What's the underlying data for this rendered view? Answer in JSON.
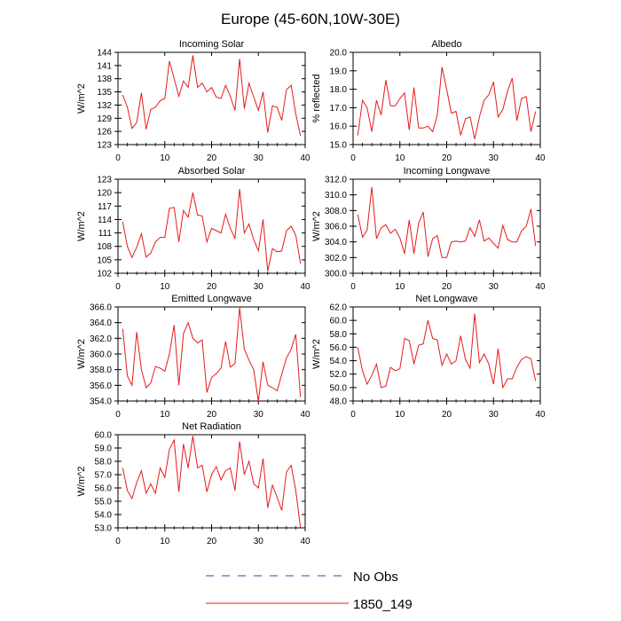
{
  "title": "Europe (45-60N,10W-30E)",
  "legend": {
    "entries": [
      {
        "label": "No Obs",
        "color": "#3a3a9e",
        "style": "dashed"
      },
      {
        "label": "1850_149",
        "color": "#e8191a",
        "style": "solid"
      }
    ]
  },
  "chart_data": [
    {
      "type": "line",
      "title": "Incoming Solar",
      "ylabel": "W/m^2",
      "xlabel": "",
      "xlim": [
        0,
        40
      ],
      "ylim": [
        123,
        144
      ],
      "xticks": [
        0,
        10,
        20,
        30,
        40
      ],
      "yticks": [
        123,
        126,
        129,
        132,
        135,
        138,
        141,
        144
      ],
      "ytick_labels": [
        "123",
        "126",
        "129",
        "132",
        "135",
        "138",
        "141",
        "144"
      ],
      "series": [
        {
          "name": "1850_149",
          "color": "#e8191a",
          "x": [
            1,
            2,
            3,
            4,
            5,
            6,
            7,
            8,
            9,
            10,
            11,
            12,
            13,
            14,
            15,
            16,
            17,
            18,
            19,
            20,
            21,
            22,
            23,
            24,
            25,
            26,
            27,
            28,
            29,
            30,
            31,
            32,
            33,
            34,
            35,
            36,
            37,
            38,
            39
          ],
          "values": [
            134.3,
            131.5,
            126.7,
            128.0,
            134.8,
            126.5,
            131.0,
            131.5,
            133.0,
            133.5,
            142.0,
            138.0,
            134.0,
            137.5,
            136.0,
            143.3,
            136.0,
            137.0,
            135.0,
            136.0,
            133.8,
            133.5,
            136.5,
            134.0,
            130.8,
            142.5,
            131.2,
            137.0,
            133.8,
            130.8,
            135.0,
            125.7,
            131.8,
            131.5,
            128.5,
            135.5,
            136.5,
            130.0,
            125.0
          ]
        }
      ]
    },
    {
      "type": "line",
      "title": "Albedo",
      "ylabel": "% reflected",
      "xlabel": "",
      "xlim": [
        0,
        40
      ],
      "ylim": [
        15.0,
        20.0
      ],
      "xticks": [
        0,
        10,
        20,
        30,
        40
      ],
      "yticks": [
        15.0,
        16.0,
        17.0,
        18.0,
        19.0,
        20.0
      ],
      "ytick_labels": [
        "15.0",
        "16.0",
        "17.0",
        "18.0",
        "19.0",
        "20.0"
      ],
      "series": [
        {
          "name": "1850_149",
          "color": "#e8191a",
          "x": [
            1,
            2,
            3,
            4,
            5,
            6,
            7,
            8,
            9,
            10,
            11,
            12,
            13,
            14,
            15,
            16,
            17,
            18,
            19,
            20,
            21,
            22,
            23,
            24,
            25,
            26,
            27,
            28,
            29,
            30,
            31,
            32,
            33,
            34,
            35,
            36,
            37,
            38,
            39
          ],
          "values": [
            15.5,
            17.4,
            17.0,
            15.7,
            17.4,
            16.6,
            18.5,
            17.1,
            17.1,
            17.5,
            17.8,
            15.8,
            18.1,
            15.9,
            15.9,
            16.0,
            15.7,
            16.6,
            19.2,
            18.0,
            16.7,
            16.8,
            15.5,
            16.4,
            16.5,
            15.3,
            16.5,
            17.4,
            17.7,
            18.4,
            16.5,
            16.9,
            17.9,
            18.6,
            16.3,
            17.5,
            17.6,
            15.7,
            16.8
          ]
        }
      ]
    },
    {
      "type": "line",
      "title": "Absorbed Solar",
      "ylabel": "W/m^2",
      "xlabel": "",
      "xlim": [
        0,
        40
      ],
      "ylim": [
        102,
        123
      ],
      "xticks": [
        0,
        10,
        20,
        30,
        40
      ],
      "yticks": [
        102,
        105,
        108,
        111,
        114,
        117,
        120,
        123
      ],
      "ytick_labels": [
        "102",
        "105",
        "108",
        "111",
        "114",
        "117",
        "120",
        "123"
      ],
      "series": [
        {
          "name": "1850_149",
          "color": "#e8191a",
          "x": [
            1,
            2,
            3,
            4,
            5,
            6,
            7,
            8,
            9,
            10,
            11,
            12,
            13,
            14,
            15,
            16,
            17,
            18,
            19,
            20,
            21,
            22,
            23,
            24,
            25,
            26,
            27,
            28,
            29,
            30,
            31,
            32,
            33,
            34,
            35,
            36,
            37,
            38,
            39
          ],
          "values": [
            113.5,
            108.0,
            105.5,
            107.8,
            110.8,
            105.6,
            106.5,
            109.0,
            110.0,
            110.0,
            116.5,
            116.7,
            109.0,
            116.0,
            114.5,
            120.0,
            115.0,
            114.8,
            109.0,
            112.0,
            111.5,
            111.0,
            115.2,
            112.0,
            109.8,
            120.8,
            111.0,
            113.0,
            109.5,
            107.0,
            114.0,
            102.5,
            107.5,
            106.8,
            107.0,
            111.5,
            112.5,
            110.5,
            104.2
          ]
        }
      ]
    },
    {
      "type": "line",
      "title": "Incoming Longwave",
      "ylabel": "W/m^2",
      "xlabel": "",
      "xlim": [
        0,
        40
      ],
      "ylim": [
        300.0,
        312.0
      ],
      "xticks": [
        0,
        10,
        20,
        30,
        40
      ],
      "yticks": [
        300.0,
        302.0,
        304.0,
        306.0,
        308.0,
        310.0,
        312.0
      ],
      "ytick_labels": [
        "300.0",
        "302.0",
        "304.0",
        "306.0",
        "308.0",
        "310.0",
        "312.0"
      ],
      "series": [
        {
          "name": "1850_149",
          "color": "#e8191a",
          "x": [
            1,
            2,
            3,
            4,
            5,
            6,
            7,
            8,
            9,
            10,
            11,
            12,
            13,
            14,
            15,
            16,
            17,
            18,
            19,
            20,
            21,
            22,
            23,
            24,
            25,
            26,
            27,
            28,
            29,
            30,
            31,
            32,
            33,
            34,
            35,
            36,
            37,
            38,
            39
          ],
          "values": [
            307.5,
            304.6,
            305.5,
            311.0,
            304.4,
            305.8,
            306.2,
            305.1,
            305.6,
            304.5,
            302.5,
            306.8,
            302.5,
            306.4,
            307.8,
            302.1,
            304.4,
            304.8,
            302.0,
            302.0,
            304.0,
            304.1,
            304.0,
            304.1,
            305.8,
            304.7,
            306.8,
            304.1,
            304.5,
            303.8,
            303.2,
            306.1,
            304.3,
            304.0,
            304.0,
            305.4,
            306.0,
            308.2,
            303.5
          ]
        }
      ]
    },
    {
      "type": "line",
      "title": "Emitted Longwave",
      "ylabel": "W/m^2",
      "xlabel": "",
      "xlim": [
        0,
        40
      ],
      "ylim": [
        354.0,
        366.0
      ],
      "xticks": [
        0,
        10,
        20,
        30,
        40
      ],
      "yticks": [
        354.0,
        356.0,
        358.0,
        360.0,
        362.0,
        364.0,
        366.0
      ],
      "ytick_labels": [
        "354.0",
        "356.0",
        "358.0",
        "360.0",
        "362.0",
        "364.0",
        "366.0"
      ],
      "series": [
        {
          "name": "1850_149",
          "color": "#e8191a",
          "x": [
            1,
            2,
            3,
            4,
            5,
            6,
            7,
            8,
            9,
            10,
            11,
            12,
            13,
            14,
            15,
            16,
            17,
            18,
            19,
            20,
            21,
            22,
            23,
            24,
            25,
            26,
            27,
            28,
            29,
            30,
            31,
            32,
            33,
            34,
            35,
            36,
            37,
            38,
            39
          ],
          "values": [
            363.2,
            357.2,
            356.0,
            362.8,
            358.0,
            355.7,
            356.3,
            358.4,
            358.2,
            357.8,
            360.0,
            363.7,
            356.0,
            362.6,
            364.0,
            362.0,
            361.4,
            361.8,
            355.1,
            357.0,
            357.5,
            358.2,
            361.6,
            358.3,
            358.8,
            365.9,
            360.6,
            359.2,
            358.0,
            353.9,
            359.0,
            356.0,
            355.7,
            355.3,
            357.4,
            359.5,
            360.6,
            362.5,
            354.5
          ]
        }
      ]
    },
    {
      "type": "line",
      "title": "Net Longwave",
      "ylabel": "W/m^2",
      "xlabel": "",
      "xlim": [
        0,
        40
      ],
      "ylim": [
        48.0,
        62.0
      ],
      "xticks": [
        0,
        10,
        20,
        30,
        40
      ],
      "yticks": [
        48.0,
        50.0,
        52.0,
        54.0,
        56.0,
        58.0,
        60.0,
        62.0
      ],
      "ytick_labels": [
        "48.0",
        "50.0",
        "52.0",
        "54.0",
        "56.0",
        "58.0",
        "60.0",
        "62.0"
      ],
      "series": [
        {
          "name": "1850_149",
          "color": "#e8191a",
          "x": [
            1,
            2,
            3,
            4,
            5,
            6,
            7,
            8,
            9,
            10,
            11,
            12,
            13,
            14,
            15,
            16,
            17,
            18,
            19,
            20,
            21,
            22,
            23,
            24,
            25,
            26,
            27,
            28,
            29,
            30,
            31,
            32,
            33,
            34,
            35,
            36,
            37,
            38,
            39
          ],
          "values": [
            56.0,
            52.5,
            50.5,
            51.8,
            53.5,
            50.0,
            50.2,
            53.0,
            52.5,
            52.8,
            57.3,
            57.0,
            53.5,
            56.3,
            56.5,
            60.0,
            57.3,
            57.1,
            53.3,
            55.0,
            53.5,
            54.0,
            57.7,
            54.2,
            52.9,
            61.0,
            53.7,
            55.0,
            53.5,
            50.5,
            55.8,
            50.0,
            51.3,
            51.3,
            53.0,
            54.2,
            54.6,
            54.3,
            51.0
          ]
        }
      ]
    },
    {
      "type": "line",
      "title": "Net Radiation",
      "ylabel": "W/m^2",
      "xlabel": "",
      "xlim": [
        0,
        40
      ],
      "ylim": [
        53.0,
        60.0
      ],
      "xticks": [
        0,
        10,
        20,
        30,
        40
      ],
      "yticks": [
        53.0,
        54.0,
        55.0,
        56.0,
        57.0,
        58.0,
        59.0,
        60.0
      ],
      "ytick_labels": [
        "53.0",
        "54.0",
        "55.0",
        "56.0",
        "57.0",
        "58.0",
        "59.0",
        "60.0"
      ],
      "series": [
        {
          "name": "1850_149",
          "color": "#e8191a",
          "x": [
            1,
            2,
            3,
            4,
            5,
            6,
            7,
            8,
            9,
            10,
            11,
            12,
            13,
            14,
            15,
            16,
            17,
            18,
            19,
            20,
            21,
            22,
            23,
            24,
            25,
            26,
            27,
            28,
            29,
            30,
            31,
            32,
            33,
            34,
            35,
            36,
            37,
            38,
            39
          ],
          "values": [
            57.5,
            55.8,
            55.2,
            56.4,
            57.3,
            55.6,
            56.3,
            55.6,
            57.5,
            56.8,
            58.9,
            59.6,
            55.7,
            59.3,
            57.5,
            59.9,
            57.5,
            57.7,
            55.7,
            57.0,
            57.6,
            56.6,
            57.3,
            57.5,
            55.8,
            59.5,
            57.0,
            58.0,
            56.3,
            56.0,
            58.2,
            54.5,
            56.2,
            55.3,
            54.3,
            57.2,
            57.7,
            55.8,
            53.0
          ]
        }
      ]
    }
  ]
}
